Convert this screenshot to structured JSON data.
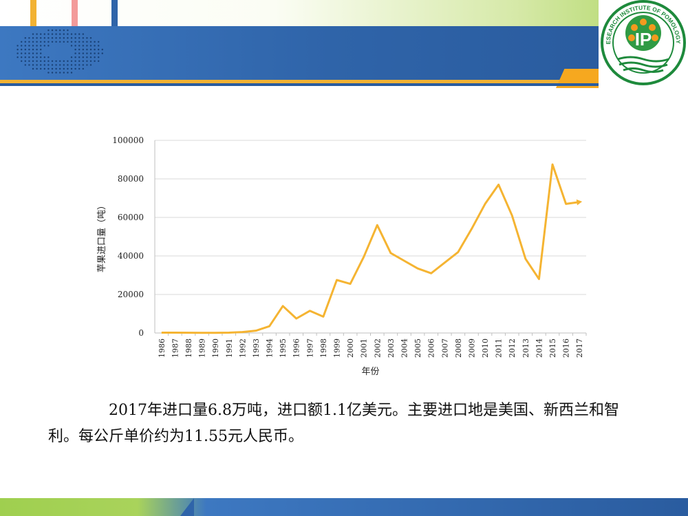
{
  "logo": {
    "ring_text": "THE RESEARCH INSTITUTE OF POMOLOGY CAAS",
    "emblem_text": "IP"
  },
  "caption": "2017年进口量6.8万吨，进口额1.1亿美元。主要进口地是美国、新西兰和智利。每公斤单价约为11.55元人民币。",
  "colors": {
    "line": "#f5b432",
    "blue": "#2f64a9",
    "orange": "#f2b233",
    "green": "#a9d35b"
  },
  "chart_data": {
    "type": "line",
    "xlabel": "年份",
    "ylabel": "苹果进口量（吨）",
    "ylim": [
      0,
      100000
    ],
    "yticks": [
      0,
      20000,
      40000,
      60000,
      80000,
      100000
    ],
    "grid": true,
    "categories": [
      "1986",
      "1987",
      "1988",
      "1989",
      "1990",
      "1991",
      "1992",
      "1993",
      "1994",
      "1995",
      "1996",
      "1997",
      "1998",
      "1999",
      "2000",
      "2001",
      "2002",
      "2003",
      "2004",
      "2005",
      "2006",
      "2007",
      "2008",
      "2009",
      "2010",
      "2011",
      "2012",
      "2013",
      "2014",
      "2015",
      "2016",
      "2017"
    ],
    "series": [
      {
        "values": [
          200,
          200,
          150,
          100,
          100,
          200,
          500,
          1200,
          3500,
          14000,
          7500,
          11500,
          8500,
          27500,
          25500,
          39500,
          56000,
          41500,
          37500,
          33500,
          31000,
          36500,
          42000,
          54000,
          67000,
          77000,
          61000,
          38500,
          28000,
          87500,
          67000,
          68000
        ]
      }
    ]
  }
}
